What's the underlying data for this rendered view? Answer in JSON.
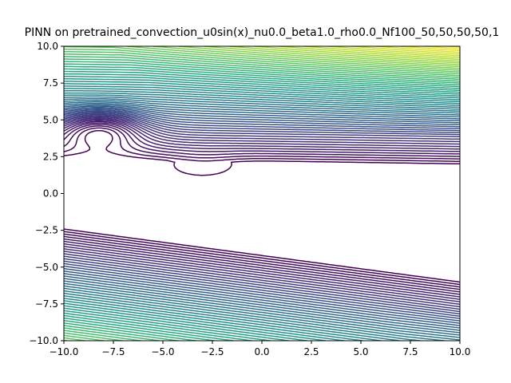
{
  "chart_data": {
    "type": "contour",
    "title": "PINN on pretrained_convection_u0sin(x)_nu0.0_beta1.0_rho0.0_Nf100_50,50,50,50,1",
    "xlabel": "",
    "ylabel": "",
    "xlim": [
      -10,
      10
    ],
    "ylim": [
      -10,
      10
    ],
    "x_ticks": [
      -10,
      -7.5,
      -5,
      -2.5,
      0,
      2.5,
      5,
      7.5,
      10
    ],
    "y_ticks": [
      -10,
      -7.5,
      -5,
      -2.5,
      0,
      2.5,
      5,
      7.5,
      10
    ],
    "x_tick_labels": [
      "−10.0",
      "−7.5",
      "−5.0",
      "−2.5",
      "0.0",
      "2.5",
      "5.0",
      "7.5",
      "10.0"
    ],
    "y_tick_labels": [
      "−10.0",
      "−7.5",
      "−5.0",
      "−2.5",
      "0.0",
      "2.5",
      "5.0",
      "7.5",
      "10.0"
    ],
    "grid": false,
    "colormap": "viridis",
    "colormap_stops": [
      "#440154",
      "#472c7a",
      "#3b518b",
      "#2c718e",
      "#21908d",
      "#27ad81",
      "#5cc863",
      "#aadc32",
      "#fde725"
    ],
    "contour_levels": 60,
    "field_description": "loss landscape: broad basin band roughly along y ≈ -0.1x - 1 from (-10, 2.5) to (10, -1.5); closed basin near (-8, 4.5); levels rise steeply toward top-right (10, 10) and bottom-left (-10, -10)"
  }
}
